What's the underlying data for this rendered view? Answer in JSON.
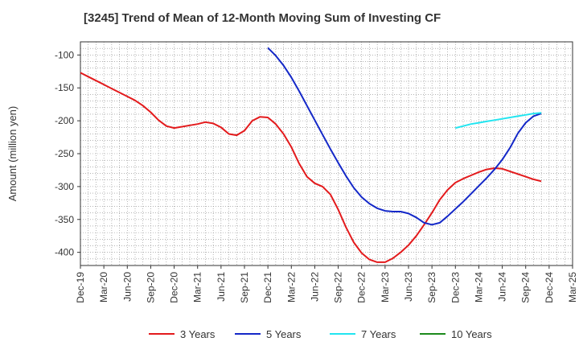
{
  "chart_data": {
    "type": "line",
    "title": "[3245]  Trend of Mean of 12-Month Moving Sum of Investing CF",
    "xlabel": "",
    "ylabel": "Amount (million yen)",
    "ylim": [
      -420,
      -80
    ],
    "yticks": [
      -100,
      -150,
      -200,
      -250,
      -300,
      -350,
      -400
    ],
    "grid": true,
    "legend_position": "bottom",
    "x_ticks": [
      "Dec-19",
      "Mar-20",
      "Jun-20",
      "Sep-20",
      "Dec-20",
      "Mar-21",
      "Jun-21",
      "Sep-21",
      "Dec-21",
      "Mar-22",
      "Jun-22",
      "Sep-22",
      "Dec-22",
      "Mar-23",
      "Jun-23",
      "Sep-23",
      "Dec-23",
      "Mar-24",
      "Jun-24",
      "Sep-24",
      "Dec-24",
      "Mar-25"
    ],
    "series": [
      {
        "name": "3 Years",
        "color": "#e31a1c",
        "points": [
          [
            0,
            -127
          ],
          [
            1,
            -133
          ],
          [
            2,
            -139
          ],
          [
            3,
            -145
          ],
          [
            4,
            -151
          ],
          [
            5,
            -157
          ],
          [
            6,
            -163
          ],
          [
            7,
            -169
          ],
          [
            8,
            -177
          ],
          [
            9,
            -187
          ],
          [
            10,
            -199
          ],
          [
            11,
            -208
          ],
          [
            12,
            -211
          ],
          [
            13,
            -209
          ],
          [
            14,
            -207
          ],
          [
            15,
            -205
          ],
          [
            16,
            -202
          ],
          [
            17,
            -204
          ],
          [
            18,
            -210
          ],
          [
            19,
            -220
          ],
          [
            20,
            -222
          ],
          [
            21,
            -215
          ],
          [
            22,
            -200
          ],
          [
            23,
            -194
          ],
          [
            24,
            -195
          ],
          [
            25,
            -205
          ],
          [
            26,
            -220
          ],
          [
            27,
            -240
          ],
          [
            28,
            -265
          ],
          [
            29,
            -285
          ],
          [
            30,
            -295
          ],
          [
            31,
            -300
          ],
          [
            32,
            -312
          ],
          [
            33,
            -335
          ],
          [
            34,
            -362
          ],
          [
            35,
            -385
          ],
          [
            36,
            -401
          ],
          [
            37,
            -411
          ],
          [
            38,
            -415
          ],
          [
            39,
            -415
          ],
          [
            40,
            -409
          ],
          [
            41,
            -400
          ],
          [
            42,
            -389
          ],
          [
            43,
            -375
          ],
          [
            44,
            -358
          ],
          [
            45,
            -340
          ],
          [
            46,
            -320
          ],
          [
            47,
            -305
          ],
          [
            48,
            -294
          ],
          [
            49,
            -288
          ],
          [
            50,
            -283
          ],
          [
            51,
            -278
          ],
          [
            52,
            -274
          ],
          [
            53,
            -272
          ],
          [
            54,
            -273
          ],
          [
            55,
            -277
          ],
          [
            56,
            -281
          ],
          [
            57,
            -285
          ],
          [
            58,
            -289
          ],
          [
            59,
            -292
          ]
        ]
      },
      {
        "name": "5 Years",
        "color": "#1428c8",
        "points": [
          [
            24,
            -89
          ],
          [
            25,
            -101
          ],
          [
            26,
            -116
          ],
          [
            27,
            -134
          ],
          [
            28,
            -155
          ],
          [
            29,
            -177
          ],
          [
            30,
            -199
          ],
          [
            31,
            -221
          ],
          [
            32,
            -243
          ],
          [
            33,
            -264
          ],
          [
            34,
            -284
          ],
          [
            35,
            -302
          ],
          [
            36,
            -316
          ],
          [
            37,
            -326
          ],
          [
            38,
            -333
          ],
          [
            39,
            -337
          ],
          [
            40,
            -338
          ],
          [
            41,
            -338
          ],
          [
            42,
            -341
          ],
          [
            43,
            -347
          ],
          [
            44,
            -355
          ],
          [
            45,
            -358
          ],
          [
            46,
            -355
          ],
          [
            47,
            -345
          ],
          [
            48,
            -334
          ],
          [
            49,
            -323
          ],
          [
            50,
            -311
          ],
          [
            51,
            -299
          ],
          [
            52,
            -287
          ],
          [
            53,
            -274
          ],
          [
            54,
            -259
          ],
          [
            55,
            -241
          ],
          [
            56,
            -219
          ],
          [
            57,
            -203
          ],
          [
            58,
            -193
          ],
          [
            59,
            -189
          ]
        ]
      },
      {
        "name": "7 Years",
        "color": "#22e5f0",
        "points": [
          [
            48,
            -211
          ],
          [
            49,
            -208
          ],
          [
            50,
            -205
          ],
          [
            51,
            -203
          ],
          [
            52,
            -201
          ],
          [
            53,
            -199
          ],
          [
            54,
            -197
          ],
          [
            55,
            -195
          ],
          [
            56,
            -193
          ],
          [
            57,
            -191
          ],
          [
            58,
            -189
          ],
          [
            59,
            -188
          ]
        ]
      },
      {
        "name": "10 Years",
        "color": "#1c8a1c",
        "points": []
      }
    ]
  }
}
